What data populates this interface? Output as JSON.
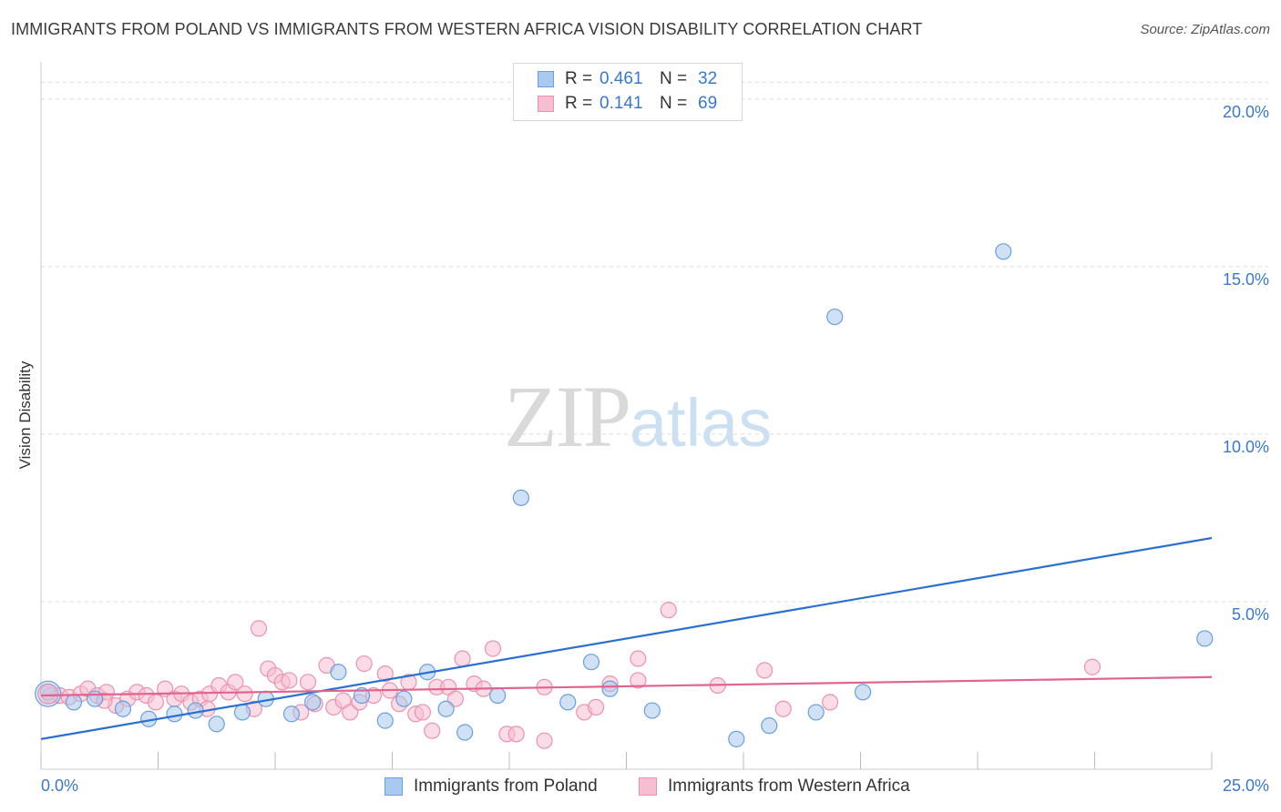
{
  "title": "IMMIGRANTS FROM POLAND VS IMMIGRANTS FROM WESTERN AFRICA VISION DISABILITY CORRELATION CHART",
  "source": "Source: ZipAtlas.com",
  "watermark": {
    "zip": "ZIP",
    "atlas": "atlas"
  },
  "legend": {
    "r_label": "R =",
    "n_label": "N =",
    "rows": [
      {
        "r": "0.461",
        "n": "32"
      },
      {
        "r": "0.141",
        "n": "69"
      }
    ]
  },
  "bottom_legend": {
    "poland": "Immigrants from Poland",
    "wafrica": "Immigrants from Western Africa"
  },
  "colors": {
    "poland_fill": "#a9c9ef",
    "poland_stroke": "#6a9fdc",
    "poland_line": "#2b6fd0",
    "wafrica_fill": "#f7bdd0",
    "wafrica_stroke": "#e993b0",
    "wafrica_line": "#e0648e",
    "axis_text": "#3b78c8",
    "grid": "#dcdcdc"
  },
  "chart_data": {
    "type": "scatter",
    "title": "IMMIGRANTS FROM POLAND VS IMMIGRANTS FROM WESTERN AFRICA VISION DISABILITY CORRELATION CHART",
    "xlabel": "",
    "ylabel": "Vision Disability",
    "xlim": [
      0,
      25
    ],
    "ylim": [
      0,
      21
    ],
    "x_tick_labels": [
      "0.0%",
      "25.0%"
    ],
    "y_ticks": [
      5,
      10,
      15,
      20
    ],
    "y_tick_labels": [
      "5.0%",
      "10.0%",
      "15.0%",
      "20.0%"
    ],
    "grid": true,
    "legend_position": "top-center",
    "series": [
      {
        "name": "Immigrants from Poland",
        "r": 0.461,
        "n": 32,
        "trend": {
          "x": [
            0,
            25
          ],
          "y": [
            0.9,
            6.9
          ]
        },
        "points": [
          [
            0.15,
            2.3
          ],
          [
            0.7,
            2.0
          ],
          [
            1.15,
            2.1
          ],
          [
            1.75,
            1.8
          ],
          [
            2.3,
            1.5
          ],
          [
            2.85,
            1.65
          ],
          [
            3.3,
            1.75
          ],
          [
            3.75,
            1.35
          ],
          [
            4.3,
            1.7
          ],
          [
            4.8,
            2.1
          ],
          [
            5.35,
            1.65
          ],
          [
            5.8,
            2.0
          ],
          [
            6.35,
            2.9
          ],
          [
            6.85,
            2.2
          ],
          [
            7.35,
            1.45
          ],
          [
            7.75,
            2.1
          ],
          [
            8.25,
            2.9
          ],
          [
            8.65,
            1.8
          ],
          [
            9.05,
            1.1
          ],
          [
            9.75,
            2.2
          ],
          [
            10.25,
            8.1
          ],
          [
            11.25,
            2.0
          ],
          [
            11.75,
            3.2
          ],
          [
            12.15,
            2.4
          ],
          [
            13.05,
            1.75
          ],
          [
            14.85,
            0.9
          ],
          [
            15.55,
            1.3
          ],
          [
            16.95,
            13.5
          ],
          [
            16.55,
            1.7
          ],
          [
            17.55,
            2.3
          ],
          [
            20.55,
            15.45
          ],
          [
            24.85,
            3.9
          ]
        ]
      },
      {
        "name": "Immigrants from Western Africa",
        "r": 0.141,
        "n": 69,
        "trend": {
          "x": [
            0,
            25
          ],
          "y": [
            2.2,
            2.75
          ]
        },
        "points": [
          [
            0.2,
            2.2
          ],
          [
            0.4,
            2.2
          ],
          [
            0.6,
            2.15
          ],
          [
            0.85,
            2.25
          ],
          [
            1.0,
            2.4
          ],
          [
            1.2,
            2.2
          ],
          [
            1.4,
            2.3
          ],
          [
            1.6,
            1.9
          ],
          [
            1.85,
            2.1
          ],
          [
            2.05,
            2.3
          ],
          [
            2.25,
            2.2
          ],
          [
            2.45,
            2.0
          ],
          [
            2.65,
            2.4
          ],
          [
            2.85,
            2.1
          ],
          [
            3.0,
            2.25
          ],
          [
            3.2,
            2.0
          ],
          [
            3.4,
            2.1
          ],
          [
            3.6,
            2.25
          ],
          [
            3.8,
            2.5
          ],
          [
            4.0,
            2.3
          ],
          [
            4.15,
            2.6
          ],
          [
            4.35,
            2.25
          ],
          [
            4.55,
            1.8
          ],
          [
            4.65,
            4.2
          ],
          [
            4.85,
            3.0
          ],
          [
            5.0,
            2.8
          ],
          [
            5.15,
            2.6
          ],
          [
            5.3,
            2.65
          ],
          [
            5.55,
            1.7
          ],
          [
            5.7,
            2.6
          ],
          [
            5.85,
            1.95
          ],
          [
            6.1,
            3.1
          ],
          [
            6.25,
            1.85
          ],
          [
            6.45,
            2.05
          ],
          [
            6.6,
            1.7
          ],
          [
            6.8,
            2.0
          ],
          [
            6.9,
            3.15
          ],
          [
            7.1,
            2.2
          ],
          [
            7.35,
            2.85
          ],
          [
            7.45,
            2.35
          ],
          [
            7.65,
            1.95
          ],
          [
            7.85,
            2.6
          ],
          [
            8.0,
            1.65
          ],
          [
            8.15,
            1.7
          ],
          [
            8.35,
            1.15
          ],
          [
            8.45,
            2.45
          ],
          [
            8.7,
            2.45
          ],
          [
            8.85,
            2.1
          ],
          [
            9.0,
            3.3
          ],
          [
            9.25,
            2.55
          ],
          [
            9.45,
            2.4
          ],
          [
            9.65,
            3.6
          ],
          [
            9.95,
            1.05
          ],
          [
            10.15,
            1.05
          ],
          [
            10.75,
            2.45
          ],
          [
            10.75,
            0.85
          ],
          [
            11.6,
            1.7
          ],
          [
            11.85,
            1.85
          ],
          [
            12.15,
            2.55
          ],
          [
            12.75,
            2.65
          ],
          [
            12.75,
            3.3
          ],
          [
            13.4,
            4.75
          ],
          [
            14.45,
            2.5
          ],
          [
            15.45,
            2.95
          ],
          [
            15.85,
            1.8
          ],
          [
            16.85,
            2.0
          ],
          [
            22.45,
            3.05
          ],
          [
            1.35,
            2.05
          ],
          [
            3.55,
            1.8
          ]
        ]
      }
    ]
  }
}
